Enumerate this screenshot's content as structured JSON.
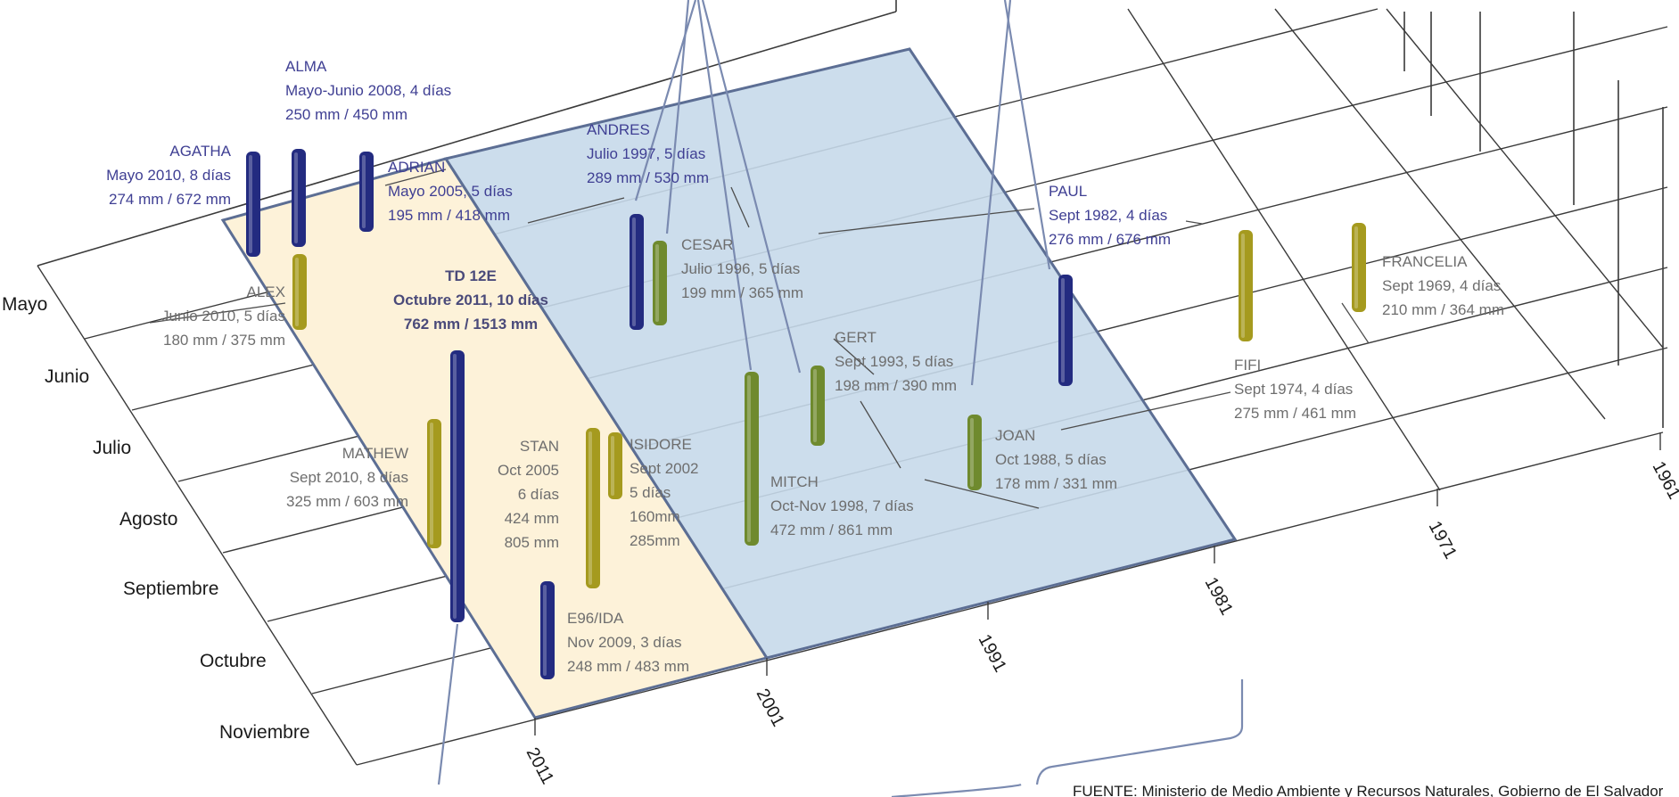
{
  "chart_data": {
    "type": "3d-timeline",
    "x_axis_labels": [
      "Mayo",
      "Junio",
      "Julio",
      "Agosto",
      "Septiembre",
      "Octubre",
      "Noviembre"
    ],
    "y_axis_labels": [
      "2011",
      "2001",
      "1991",
      "1981",
      "1971",
      "1961"
    ],
    "highlight_bands": [
      {
        "from": 2011,
        "to": 2005,
        "color": "#fdf2d9"
      },
      {
        "from": 2004,
        "to": 1981,
        "color": "#c7d9ea"
      }
    ],
    "events": [
      {
        "name": "AGATHA",
        "year": 2010,
        "month": "Mayo",
        "lines": [
          "AGATHA",
          "Mayo 2010, 8 días",
          "274 mm / 672 mm"
        ],
        "duration_days": 8,
        "rain_mm": 274,
        "max_mm": 672,
        "color": "#232b80",
        "style": "blue"
      },
      {
        "name": "ALMA",
        "year": 2008,
        "month": "Mayo-Junio",
        "lines": [
          "ALMA",
          "Mayo-Junio 2008, 4 días",
          "250 mm / 450 mm"
        ],
        "duration_days": 4,
        "rain_mm": 250,
        "max_mm": 450,
        "color": "#232b80",
        "style": "blue"
      },
      {
        "name": "ADRIAN",
        "year": 2005,
        "month": "Mayo",
        "lines": [
          "ADRIAN",
          "Mayo 2005, 5 días",
          "195 mm / 418 mm"
        ],
        "duration_days": 5,
        "rain_mm": 195,
        "max_mm": 418,
        "color": "#232b80",
        "style": "blue"
      },
      {
        "name": "ALEX",
        "year": 2010,
        "month": "Junio",
        "lines": [
          "ALEX",
          "Junio 2010, 5 días",
          "180 mm / 375 mm"
        ],
        "duration_days": 5,
        "rain_mm": 180,
        "max_mm": 375,
        "color": "#a59a1e",
        "style": "gray"
      },
      {
        "name": "TD 12E",
        "year": 2011,
        "month": "Octubre",
        "lines": [
          "TD 12E",
          "Octubre 2011, 10 días",
          "762 mm / 1513 mm"
        ],
        "duration_days": 10,
        "rain_mm": 762,
        "max_mm": 1513,
        "color": "#232b80",
        "style": "bold"
      },
      {
        "name": "MATHEW",
        "year": 2010,
        "month": "Septiembre",
        "lines": [
          "MATHEW",
          "Sept 2010, 8 días",
          "325 mm / 603 mm"
        ],
        "duration_days": 8,
        "rain_mm": 325,
        "max_mm": 603,
        "color": "#a59a1e",
        "style": "gray"
      },
      {
        "name": "STAN",
        "year": 2005,
        "month": "Octubre",
        "lines": [
          "STAN",
          "Oct 2005",
          "6 días",
          "424 mm",
          "805 mm"
        ],
        "duration_days": 6,
        "rain_mm": 424,
        "max_mm": 805,
        "color": "#a59a1e",
        "style": "gray"
      },
      {
        "name": "ISIDORE",
        "year": 2002,
        "month": "Septiembre",
        "lines": [
          "ISIDORE",
          "Sept 2002",
          "5 días",
          "160mm",
          "285mm"
        ],
        "duration_days": 5,
        "rain_mm": 160,
        "max_mm": 285,
        "color": "#a59a1e",
        "style": "gray"
      },
      {
        "name": "E96/IDA",
        "year": 2009,
        "month": "Noviembre",
        "lines": [
          "E96/IDA",
          "Nov 2009, 3 días",
          "248 mm / 483 mm"
        ],
        "duration_days": 3,
        "rain_mm": 248,
        "max_mm": 483,
        "color": "#232b80",
        "style": "gray"
      },
      {
        "name": "ANDRES",
        "year": 1997,
        "month": "Julio",
        "lines": [
          "ANDRES",
          "Julio 1997, 5 días",
          "289 mm / 530 mm"
        ],
        "duration_days": 5,
        "rain_mm": 289,
        "max_mm": 530,
        "color": "#232b80",
        "style": "blue"
      },
      {
        "name": "CESAR",
        "year": 1996,
        "month": "Julio",
        "lines": [
          "CESAR",
          "Julio 1996, 5 días",
          "199 mm / 365 mm"
        ],
        "duration_days": 5,
        "rain_mm": 199,
        "max_mm": 365,
        "color": "#6f8a2e",
        "style": "gray"
      },
      {
        "name": "GERT",
        "year": 1993,
        "month": "Septiembre",
        "lines": [
          "GERT",
          "Sept 1993, 5 días",
          "198 mm / 390 mm"
        ],
        "duration_days": 5,
        "rain_mm": 198,
        "max_mm": 390,
        "color": "#6f8a2e",
        "style": "gray"
      },
      {
        "name": "MITCH",
        "year": 1998,
        "month": "Octubre-Noviembre",
        "lines": [
          "MITCH",
          "Oct-Nov 1998, 7 días",
          "472 mm / 861 mm"
        ],
        "duration_days": 7,
        "rain_mm": 472,
        "max_mm": 861,
        "color": "#6f8a2e",
        "style": "gray"
      },
      {
        "name": "JOAN",
        "year": 1988,
        "month": "Octubre",
        "lines": [
          "JOAN",
          "Oct 1988, 5 días",
          "178 mm / 331 mm"
        ],
        "duration_days": 5,
        "rain_mm": 178,
        "max_mm": 331,
        "color": "#6f8a2e",
        "style": "gray"
      },
      {
        "name": "PAUL",
        "year": 1982,
        "month": "Septiembre",
        "lines": [
          "PAUL",
          "Sept 1982, 4 días",
          "276 mm / 676 mm"
        ],
        "duration_days": 4,
        "rain_mm": 276,
        "max_mm": 676,
        "color": "#232b80",
        "style": "blue"
      },
      {
        "name": "FIFI",
        "year": 1974,
        "month": "Septiembre",
        "lines": [
          "FIFI",
          "Sept 1974, 4 días",
          "275 mm / 461 mm"
        ],
        "duration_days": 4,
        "rain_mm": 275,
        "max_mm": 461,
        "color": "#a59a1e",
        "style": "gray"
      },
      {
        "name": "FRANCELIA",
        "year": 1969,
        "month": "Septiembre",
        "lines": [
          "FRANCELIA",
          "Sept 1969, 4 días",
          "210 mm / 364 mm"
        ],
        "duration_days": 4,
        "rain_mm": 210,
        "max_mm": 364,
        "color": "#a59a1e",
        "style": "gray"
      }
    ],
    "source": "FUENTE: Ministerio de Medio Ambiente y Recursos Naturales, Gobierno de El Salvador"
  }
}
